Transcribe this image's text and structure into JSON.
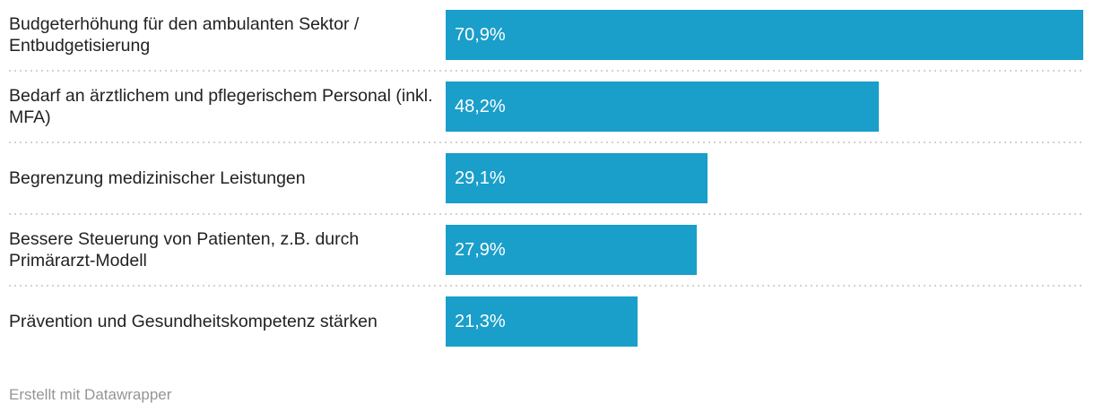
{
  "chart_data": {
    "type": "bar",
    "orientation": "horizontal",
    "title": "",
    "xlabel": "",
    "ylabel": "",
    "xlim": [
      0,
      70.9
    ],
    "grid": false,
    "legend": false,
    "value_label_position": "inside-start",
    "categories": [
      "Budgeterhöhung für den ambulanten Sektor / Entbudgetisierung",
      "Bedarf an ärztlichem und pflegerischem Personal (inkl. MFA)",
      "Begrenzung medizinischer Leistungen",
      "Bessere Steuerung von Patienten, z.B. durch Primärarzt-Modell",
      "Prävention und Gesundheitskompetenz stärken"
    ],
    "values": [
      70.9,
      48.2,
      29.1,
      27.9,
      21.3
    ],
    "value_labels": [
      "70,9%",
      "48,2%",
      "29,1%",
      "27,9%",
      "21,3%"
    ]
  },
  "footer": {
    "attribution": "Erstellt mit Datawrapper"
  },
  "colors": {
    "bar": "#1a9eca",
    "label_text": "#222222",
    "value_text": "#ffffff",
    "separator": "#d2d2d2",
    "footer_text": "#959595",
    "background": "#ffffff"
  }
}
